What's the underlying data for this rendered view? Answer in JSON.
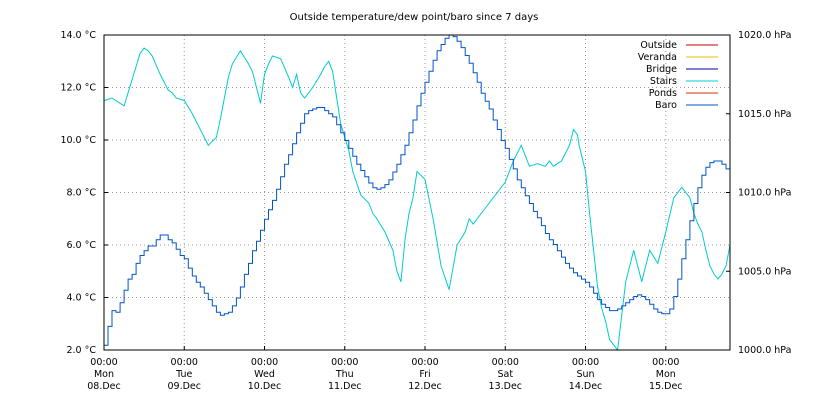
{
  "chart_data": {
    "type": "line",
    "title": "Outside temperature/dew point/baro since 7 days",
    "y_left": {
      "unit": "°C",
      "ylim": [
        2.0,
        14.0
      ],
      "ticks": [
        "2.0 °C",
        "4.0 °C",
        "6.0 °C",
        "8.0 °C",
        "10.0 °C",
        "12.0 °C",
        "14.0 °C"
      ],
      "tick_values": [
        2,
        4,
        6,
        8,
        10,
        12,
        14
      ]
    },
    "y_right": {
      "unit": "hPa",
      "ylim": [
        1000.0,
        1020.0
      ],
      "ticks": [
        "1000.0 hPa",
        "1005.0 hPa",
        "1010.0 hPa",
        "1015.0 hPa",
        "1020.0 hPa"
      ],
      "tick_values": [
        1000,
        1005,
        1010,
        1015,
        1020
      ]
    },
    "x": {
      "unit": "days since Mon 08.Dec 00:00",
      "xlim": [
        0,
        7.8
      ],
      "ticks": [
        {
          "value": 0,
          "time": "00:00",
          "day": "Mon",
          "date": "08.Dec"
        },
        {
          "value": 1,
          "time": "00:00",
          "day": "Tue",
          "date": "09.Dec"
        },
        {
          "value": 2,
          "time": "00:00",
          "day": "Wed",
          "date": "10.Dec"
        },
        {
          "value": 3,
          "time": "00:00",
          "day": "Thu",
          "date": "11.Dec"
        },
        {
          "value": 4,
          "time": "00:00",
          "day": "Fri",
          "date": "12.Dec"
        },
        {
          "value": 5,
          "time": "00:00",
          "day": "Sat",
          "date": "13.Dec"
        },
        {
          "value": 6,
          "time": "00:00",
          "day": "Sun",
          "date": "14.Dec"
        },
        {
          "value": 7,
          "time": "00:00",
          "day": "Mon",
          "date": "15.Dec"
        }
      ]
    },
    "grid": true,
    "legend": "top-right",
    "series": [
      {
        "name": "Outside",
        "color": "#cc0000",
        "axis": "left",
        "x": [],
        "y": []
      },
      {
        "name": "Veranda",
        "color": "#e0c000",
        "axis": "left",
        "x": [],
        "y": []
      },
      {
        "name": "Bridge",
        "color": "#0000aa",
        "axis": "left",
        "x": [],
        "y": []
      },
      {
        "name": "Stairs",
        "color": "#00cccc",
        "axis": "left",
        "x": [
          0.0,
          0.1,
          0.2,
          0.25,
          0.3,
          0.35,
          0.4,
          0.45,
          0.5,
          0.55,
          0.6,
          0.7,
          0.8,
          0.85,
          0.9,
          1.0,
          1.1,
          1.2,
          1.3,
          1.4,
          1.45,
          1.5,
          1.55,
          1.6,
          1.7,
          1.8,
          1.85,
          1.9,
          1.95,
          2.0,
          2.05,
          2.1,
          2.2,
          2.3,
          2.35,
          2.4,
          2.45,
          2.5,
          2.6,
          2.7,
          2.75,
          2.8,
          2.85,
          2.9,
          2.95,
          3.0,
          3.05,
          3.1,
          3.2,
          3.3,
          3.35,
          3.4,
          3.5,
          3.6,
          3.65,
          3.7,
          3.75,
          3.8,
          3.85,
          3.9,
          4.0,
          4.1,
          4.2,
          4.3,
          4.4,
          4.5,
          4.55,
          4.6,
          4.7,
          4.8,
          4.9,
          5.0,
          5.1,
          5.2,
          5.3,
          5.4,
          5.5,
          5.55,
          5.6,
          5.65,
          5.7,
          5.8,
          5.85,
          5.9,
          5.92,
          6.0,
          6.05,
          6.1,
          6.15,
          6.2,
          6.25,
          6.3,
          6.35,
          6.4,
          6.5,
          6.6,
          6.7,
          6.8,
          6.9,
          7.0,
          7.1,
          7.2,
          7.3,
          7.35,
          7.4,
          7.45,
          7.5,
          7.55,
          7.6,
          7.65,
          7.7,
          7.75,
          7.8
        ],
        "y": [
          11.5,
          11.6,
          11.4,
          11.3,
          11.8,
          12.3,
          12.8,
          13.3,
          13.5,
          13.4,
          13.2,
          12.5,
          11.9,
          11.8,
          11.6,
          11.5,
          11.0,
          10.4,
          9.8,
          10.1,
          10.8,
          11.6,
          12.4,
          12.9,
          13.4,
          12.9,
          12.6,
          12.0,
          11.4,
          12.5,
          12.9,
          13.2,
          13.1,
          12.4,
          12.0,
          12.5,
          11.8,
          11.6,
          12.0,
          12.5,
          12.8,
          13.0,
          12.6,
          11.6,
          10.6,
          10.1,
          9.6,
          8.8,
          7.9,
          7.6,
          7.2,
          7.0,
          6.5,
          5.8,
          5.0,
          4.6,
          6.2,
          7.2,
          7.8,
          8.8,
          8.5,
          7.0,
          5.2,
          4.3,
          6.0,
          6.5,
          7.0,
          6.8,
          7.2,
          7.6,
          8.0,
          8.4,
          9.2,
          9.8,
          9.0,
          9.1,
          9.0,
          9.2,
          9.0,
          9.1,
          9.2,
          9.8,
          10.4,
          10.2,
          9.8,
          8.8,
          7.2,
          5.8,
          4.4,
          3.6,
          3.1,
          2.4,
          2.2,
          2.0,
          4.6,
          5.8,
          4.6,
          5.8,
          5.3,
          6.5,
          7.8,
          8.2,
          7.8,
          7.2,
          6.8,
          6.5,
          5.8,
          5.2,
          4.9,
          4.7,
          4.9,
          5.2,
          6.0
        ]
      },
      {
        "name": "Ponds",
        "color": "#cc3300",
        "axis": "left",
        "x": [],
        "y": []
      },
      {
        "name": "Baro",
        "color": "#0055cc",
        "axis": "right",
        "x": [
          0.0,
          0.05,
          0.1,
          0.15,
          0.2,
          0.25,
          0.3,
          0.35,
          0.4,
          0.45,
          0.5,
          0.55,
          0.6,
          0.65,
          0.7,
          0.75,
          0.8,
          0.85,
          0.9,
          0.95,
          1.0,
          1.05,
          1.1,
          1.15,
          1.2,
          1.25,
          1.3,
          1.35,
          1.4,
          1.45,
          1.5,
          1.55,
          1.6,
          1.65,
          1.7,
          1.75,
          1.8,
          1.85,
          1.9,
          1.95,
          2.0,
          2.05,
          2.1,
          2.15,
          2.2,
          2.25,
          2.3,
          2.35,
          2.4,
          2.45,
          2.5,
          2.55,
          2.6,
          2.65,
          2.7,
          2.75,
          2.8,
          2.85,
          2.9,
          2.95,
          3.0,
          3.05,
          3.1,
          3.15,
          3.2,
          3.25,
          3.3,
          3.35,
          3.4,
          3.45,
          3.5,
          3.55,
          3.6,
          3.65,
          3.7,
          3.75,
          3.8,
          3.85,
          3.9,
          3.95,
          4.0,
          4.05,
          4.1,
          4.15,
          4.2,
          4.25,
          4.3,
          4.35,
          4.4,
          4.45,
          4.5,
          4.55,
          4.6,
          4.65,
          4.7,
          4.75,
          4.8,
          4.85,
          4.9,
          4.95,
          5.0,
          5.05,
          5.1,
          5.15,
          5.2,
          5.25,
          5.3,
          5.35,
          5.4,
          5.45,
          5.5,
          5.55,
          5.6,
          5.65,
          5.7,
          5.75,
          5.8,
          5.85,
          5.9,
          5.95,
          6.0,
          6.05,
          6.1,
          6.15,
          6.2,
          6.25,
          6.3,
          6.35,
          6.4,
          6.45,
          6.5,
          6.55,
          6.6,
          6.65,
          6.7,
          6.75,
          6.8,
          6.85,
          6.9,
          6.95,
          7.0,
          7.05,
          7.1,
          7.15,
          7.2,
          7.25,
          7.3,
          7.35,
          7.4,
          7.45,
          7.5,
          7.55,
          7.6,
          7.65,
          7.7,
          7.75,
          7.8
        ],
        "y": [
          1000.3,
          1001.5,
          1002.5,
          1002.4,
          1003.0,
          1003.8,
          1004.5,
          1004.8,
          1005.5,
          1006.0,
          1006.3,
          1006.6,
          1006.6,
          1007.0,
          1007.3,
          1007.3,
          1007.0,
          1006.8,
          1006.4,
          1006.0,
          1005.8,
          1005.2,
          1004.7,
          1004.3,
          1004.0,
          1003.6,
          1003.2,
          1002.8,
          1002.4,
          1002.2,
          1002.3,
          1002.4,
          1002.8,
          1003.3,
          1004.0,
          1004.8,
          1005.5,
          1006.3,
          1006.9,
          1007.6,
          1008.3,
          1008.9,
          1009.5,
          1010.2,
          1011.0,
          1011.8,
          1012.4,
          1013.1,
          1013.8,
          1014.4,
          1015.0,
          1015.2,
          1015.3,
          1015.4,
          1015.4,
          1015.2,
          1015.0,
          1014.8,
          1014.3,
          1013.8,
          1013.3,
          1012.8,
          1012.3,
          1011.8,
          1011.4,
          1011.0,
          1010.6,
          1010.3,
          1010.2,
          1010.3,
          1010.5,
          1010.8,
          1011.3,
          1011.8,
          1012.4,
          1013.0,
          1013.8,
          1014.6,
          1015.5,
          1016.3,
          1017.0,
          1017.7,
          1018.4,
          1019.0,
          1019.4,
          1019.8,
          1020.0,
          1019.9,
          1019.6,
          1019.2,
          1018.7,
          1018.2,
          1017.6,
          1017.0,
          1016.3,
          1015.8,
          1015.3,
          1014.6,
          1014.0,
          1013.3,
          1012.8,
          1012.1,
          1011.5,
          1010.8,
          1010.3,
          1009.8,
          1009.3,
          1008.8,
          1008.4,
          1007.9,
          1007.4,
          1007.0,
          1006.7,
          1006.3,
          1005.9,
          1005.5,
          1005.2,
          1004.9,
          1004.7,
          1004.5,
          1004.3,
          1004.0,
          1003.6,
          1003.2,
          1002.9,
          1002.7,
          1002.5,
          1002.5,
          1002.6,
          1002.8,
          1003.0,
          1003.2,
          1003.4,
          1003.5,
          1003.4,
          1003.2,
          1002.9,
          1002.6,
          1002.4,
          1002.3,
          1002.3,
          1002.6,
          1003.4,
          1004.5,
          1005.8,
          1007.0,
          1008.2,
          1009.3,
          1010.3,
          1011.1,
          1011.6,
          1011.9,
          1012.0,
          1012.0,
          1011.8,
          1011.5,
          1011.2
        ]
      }
    ]
  }
}
